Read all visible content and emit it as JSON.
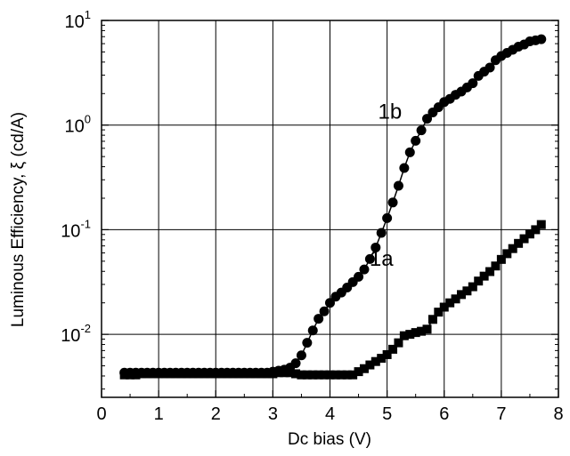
{
  "chart_data": {
    "type": "scatter",
    "title": "",
    "xlabel": "Dc bias (V)",
    "ylabel": "Luminous Efficiency, ξ (cd/A)",
    "xlim": [
      0,
      8
    ],
    "ylim": [
      0.0025,
      10
    ],
    "yscale": "log",
    "grid": true,
    "legend": "none",
    "x_ticks": [
      "0",
      "1",
      "2",
      "3",
      "4",
      "5",
      "6",
      "7",
      "8"
    ],
    "y_ticks": [
      {
        "base": "10",
        "exp": "-2",
        "value": 0.01
      },
      {
        "base": "10",
        "exp": "-1",
        "value": 0.1
      },
      {
        "base": "10",
        "exp": "0",
        "value": 1
      },
      {
        "base": "10",
        "exp": "1",
        "value": 10
      }
    ],
    "series": [
      {
        "name": "1a",
        "marker": "square",
        "color": "#000000",
        "label_at": [
          4.9,
          0.045
        ],
        "x": [
          0.4,
          0.5,
          0.6,
          0.7,
          0.8,
          0.9,
          1.0,
          1.1,
          1.2,
          1.3,
          1.4,
          1.5,
          1.6,
          1.7,
          1.8,
          1.9,
          2.0,
          2.1,
          2.2,
          2.3,
          2.4,
          2.5,
          2.6,
          2.7,
          2.8,
          2.9,
          3.0,
          3.1,
          3.2,
          3.3,
          3.4,
          3.5,
          3.6,
          3.7,
          3.8,
          3.9,
          4.0,
          4.1,
          4.2,
          4.3,
          4.4,
          4.5,
          4.6,
          4.7,
          4.8,
          4.9,
          5.0,
          5.1,
          5.2,
          5.3,
          5.4,
          5.5,
          5.6,
          5.7,
          5.8,
          5.9,
          6.0,
          6.1,
          6.2,
          6.3,
          6.4,
          6.5,
          6.6,
          6.7,
          6.8,
          6.9,
          7.0,
          7.1,
          7.2,
          7.3,
          7.4,
          7.5,
          7.6,
          7.7
        ],
        "y": [
          0.0041,
          0.0041,
          0.0041,
          0.0042,
          0.0042,
          0.0042,
          0.0042,
          0.0042,
          0.0042,
          0.0042,
          0.0042,
          0.0042,
          0.0042,
          0.0042,
          0.0042,
          0.0042,
          0.0042,
          0.0042,
          0.0042,
          0.0042,
          0.0042,
          0.0042,
          0.0042,
          0.0042,
          0.0042,
          0.0042,
          0.0042,
          0.0043,
          0.0043,
          0.0043,
          0.0042,
          0.0041,
          0.0041,
          0.0041,
          0.0041,
          0.0041,
          0.0041,
          0.0041,
          0.0041,
          0.0041,
          0.0041,
          0.0044,
          0.0047,
          0.0051,
          0.0055,
          0.0059,
          0.0064,
          0.0072,
          0.0083,
          0.0097,
          0.01,
          0.0104,
          0.0107,
          0.0112,
          0.0139,
          0.0163,
          0.0182,
          0.02,
          0.0218,
          0.024,
          0.026,
          0.0285,
          0.0323,
          0.036,
          0.0398,
          0.045,
          0.052,
          0.059,
          0.066,
          0.074,
          0.082,
          0.091,
          0.1,
          0.112
        ]
      },
      {
        "name": "1b",
        "marker": "circle",
        "color": "#000000",
        "label_at": [
          5.05,
          1.15
        ],
        "x": [
          0.4,
          0.5,
          0.6,
          0.7,
          0.8,
          0.9,
          1.0,
          1.1,
          1.2,
          1.3,
          1.4,
          1.5,
          1.6,
          1.7,
          1.8,
          1.9,
          2.0,
          2.1,
          2.2,
          2.3,
          2.4,
          2.5,
          2.6,
          2.7,
          2.8,
          2.9,
          3.0,
          3.1,
          3.2,
          3.3,
          3.4,
          3.5,
          3.6,
          3.7,
          3.8,
          3.9,
          4.0,
          4.1,
          4.2,
          4.3,
          4.4,
          4.5,
          4.6,
          4.7,
          4.8,
          4.9,
          5.0,
          5.1,
          5.2,
          5.3,
          5.4,
          5.5,
          5.6,
          5.7,
          5.8,
          5.9,
          6.0,
          6.1,
          6.2,
          6.3,
          6.4,
          6.5,
          6.6,
          6.7,
          6.8,
          6.9,
          7.0,
          7.1,
          7.2,
          7.3,
          7.4,
          7.5,
          7.6,
          7.7
        ],
        "y": [
          0.0043,
          0.0043,
          0.0043,
          0.0043,
          0.0043,
          0.0043,
          0.0043,
          0.0043,
          0.0043,
          0.0043,
          0.0043,
          0.0043,
          0.0043,
          0.0043,
          0.0043,
          0.0043,
          0.0043,
          0.0043,
          0.0043,
          0.0043,
          0.0043,
          0.0043,
          0.0043,
          0.0043,
          0.0043,
          0.0043,
          0.0044,
          0.0045,
          0.0046,
          0.0048,
          0.0053,
          0.0063,
          0.0083,
          0.0109,
          0.0141,
          0.0166,
          0.02,
          0.0229,
          0.0251,
          0.028,
          0.0316,
          0.0355,
          0.0417,
          0.0525,
          0.0676,
          0.0933,
          0.129,
          0.182,
          0.263,
          0.389,
          0.549,
          0.708,
          0.891,
          1.15,
          1.32,
          1.48,
          1.66,
          1.78,
          1.95,
          2.09,
          2.29,
          2.51,
          2.95,
          3.24,
          3.55,
          4.17,
          4.57,
          4.9,
          5.25,
          5.62,
          5.89,
          6.31,
          6.46,
          6.61
        ]
      }
    ]
  }
}
